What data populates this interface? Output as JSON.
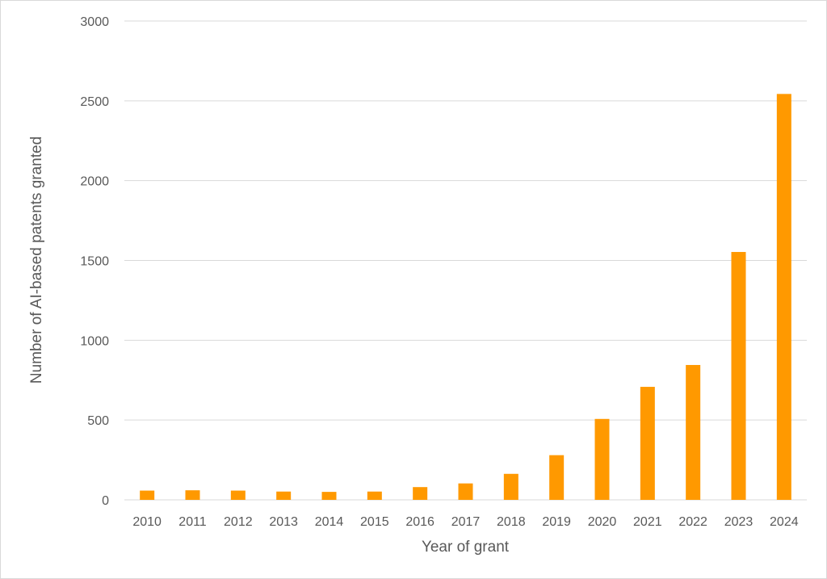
{
  "chart_data": {
    "type": "bar",
    "categories": [
      "2010",
      "2011",
      "2012",
      "2013",
      "2014",
      "2015",
      "2016",
      "2017",
      "2018",
      "2019",
      "2020",
      "2021",
      "2022",
      "2023",
      "2024"
    ],
    "values": [
      58,
      60,
      58,
      52,
      50,
      52,
      80,
      103,
      163,
      280,
      507,
      708,
      845,
      1553,
      2543
    ],
    "xlabel": "Year of grant",
    "ylabel": "Number of AI-based patents granted",
    "ylim": [
      0,
      3000
    ],
    "yticks": [
      0,
      500,
      1000,
      1500,
      2000,
      2500,
      3000
    ],
    "grid": true,
    "legend": "none",
    "bar_color": "#ff9900"
  }
}
